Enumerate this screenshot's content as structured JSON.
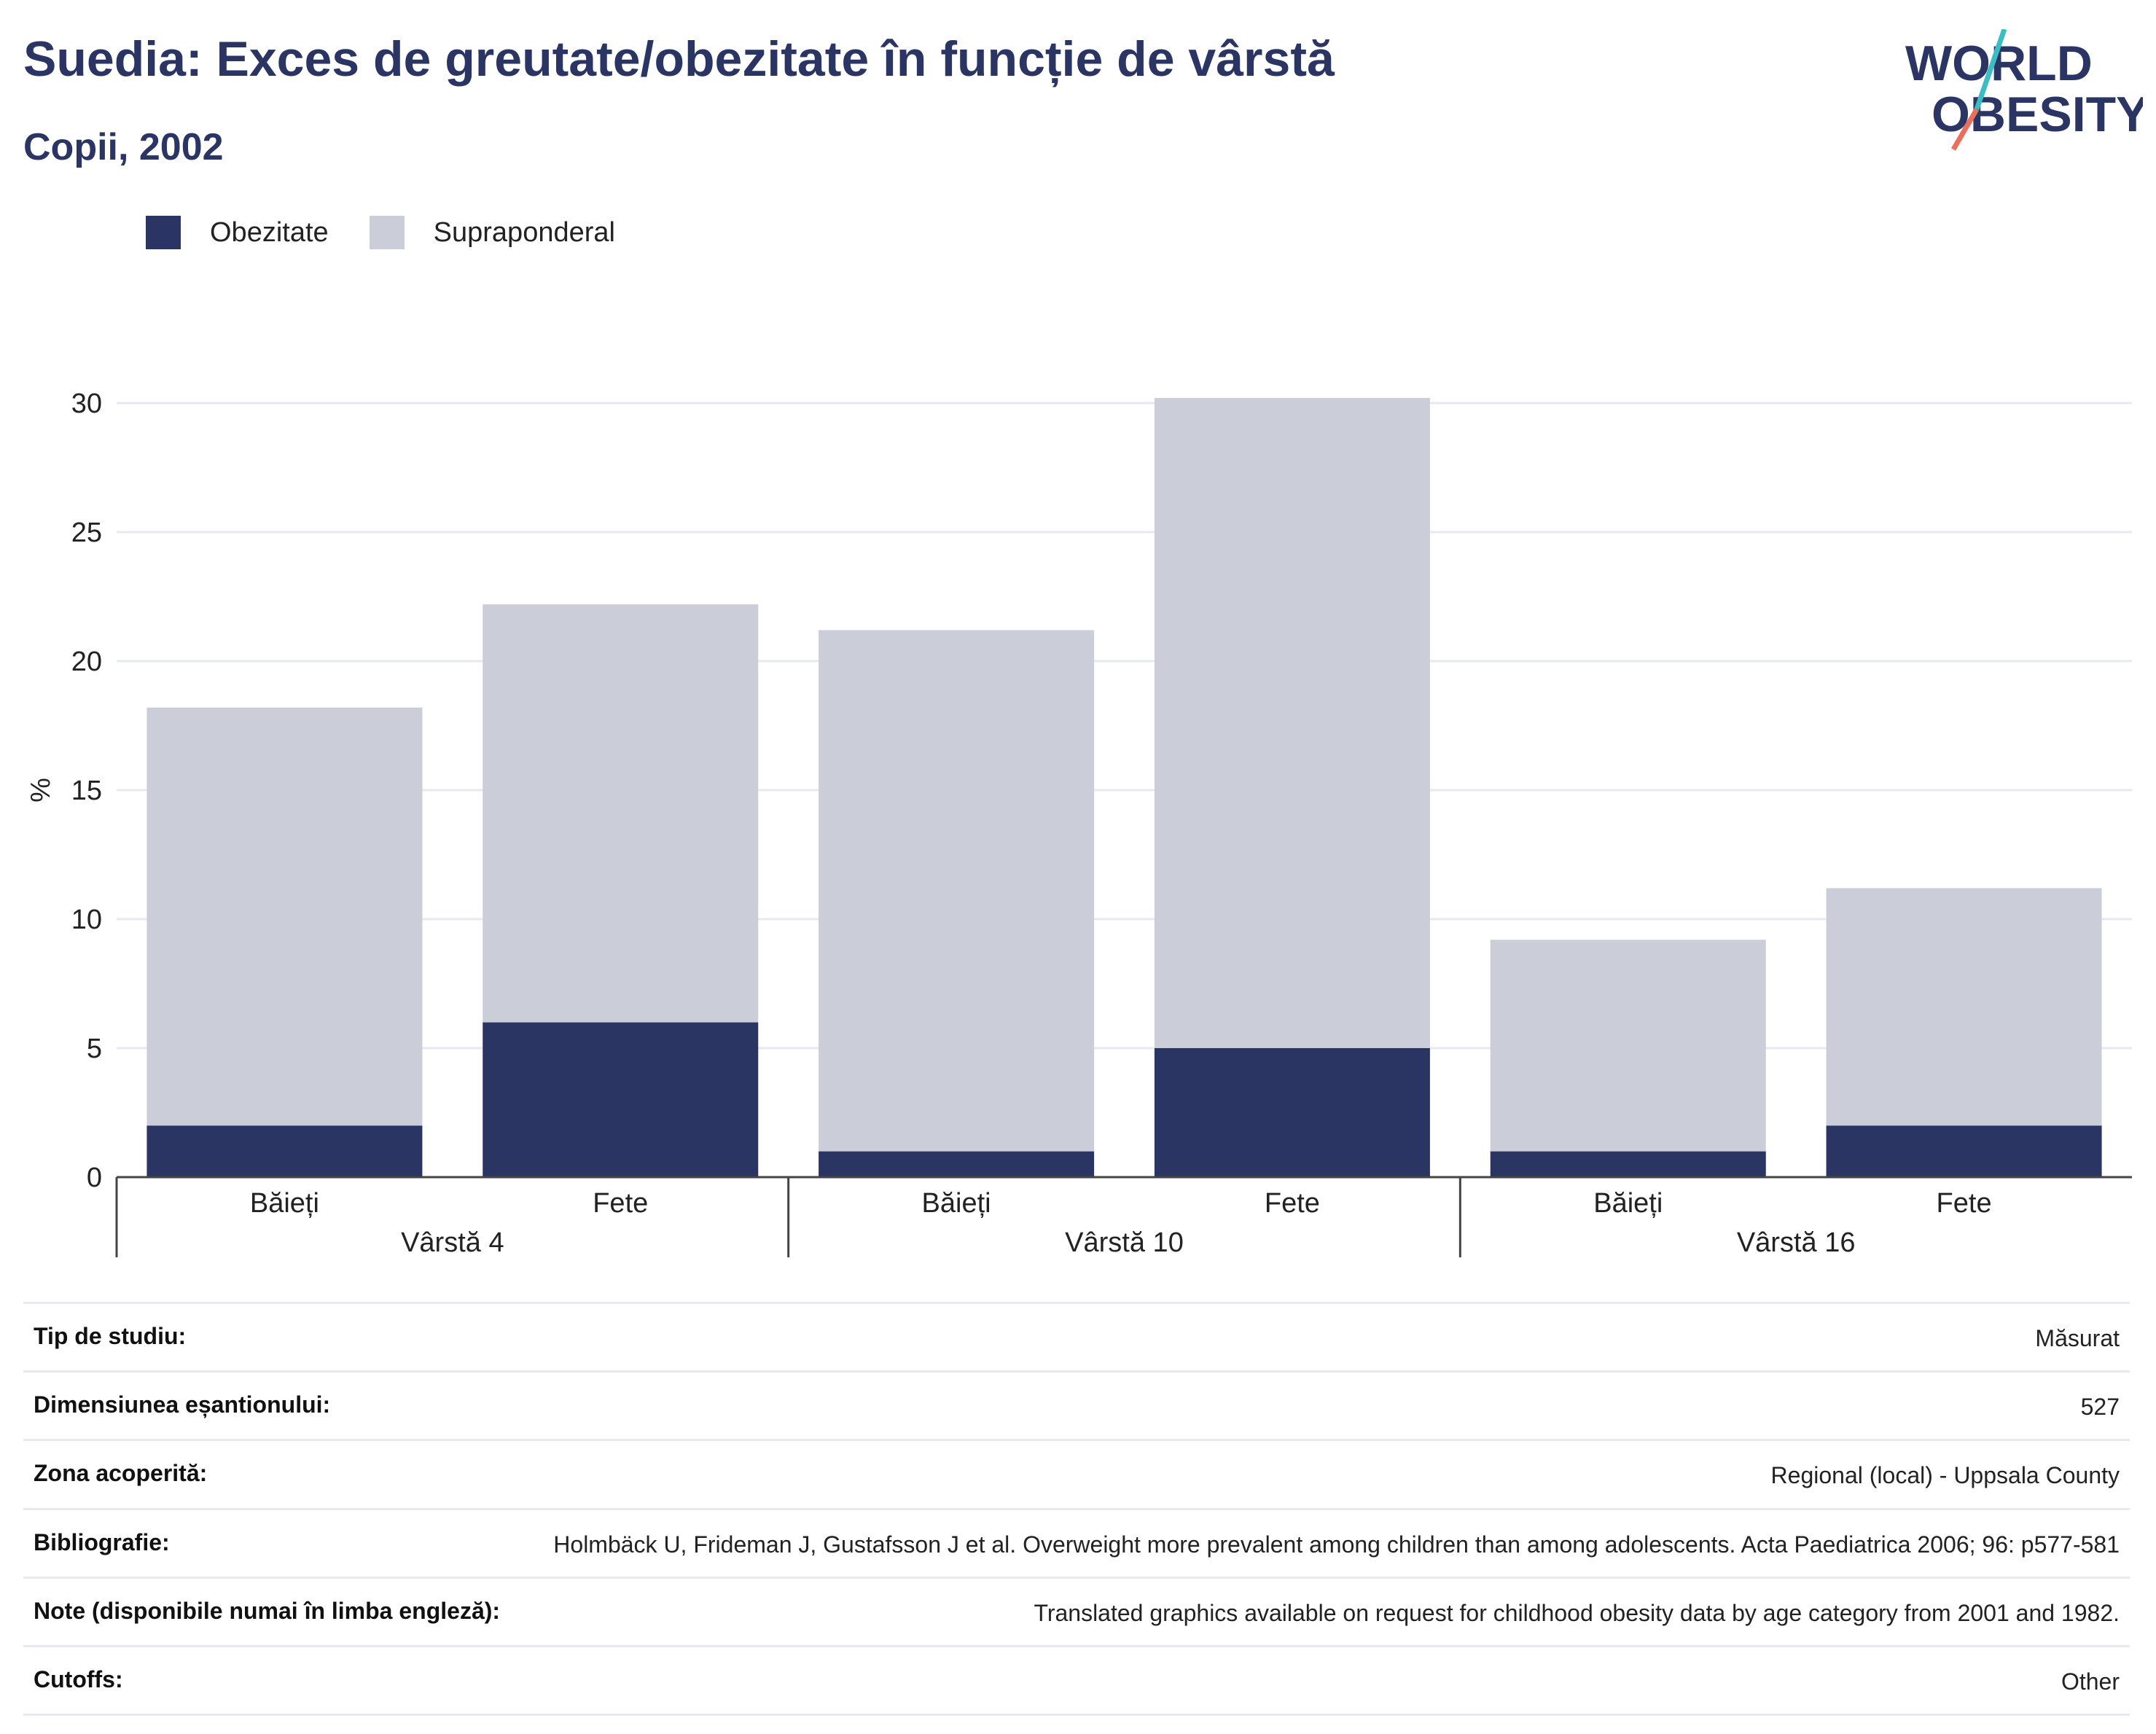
{
  "header": {
    "title": "Suedia: Exces de greutate/obezitate în funcție de vârstă",
    "subtitle": "Copii, 2002"
  },
  "logo": {
    "line1": "WORLD",
    "line2": "OBESITY"
  },
  "legend": [
    {
      "label": "Obezitate",
      "color": "#2b3563"
    },
    {
      "label": "Supraponderal",
      "color": "#cbcdd9"
    }
  ],
  "chart_data": {
    "type": "bar",
    "stacked": true,
    "ylabel": "%",
    "ylim": [
      0,
      30
    ],
    "yticks": [
      0,
      5,
      10,
      15,
      20,
      25,
      30
    ],
    "groups": [
      "Vârstă 4",
      "Vârstă 10",
      "Vârstă 16"
    ],
    "categories": [
      "Băieți",
      "Fete",
      "Băieți",
      "Fete",
      "Băieți",
      "Fete"
    ],
    "category_group": [
      0,
      0,
      1,
      1,
      2,
      2
    ],
    "series": [
      {
        "name": "Obezitate",
        "color": "#2b3563",
        "values": [
          2,
          6,
          1,
          5,
          1,
          2
        ]
      },
      {
        "name": "Supraponderal",
        "color": "#cbcdd9",
        "values": [
          16.2,
          16.2,
          20.2,
          25.2,
          8.2,
          9.2
        ]
      }
    ],
    "grid": true,
    "legend_position": "top-left"
  },
  "meta": [
    {
      "label": "Tip de studiu:",
      "value": "Măsurat"
    },
    {
      "label": "Dimensiunea eșantionului:",
      "value": "527"
    },
    {
      "label": "Zona acoperită:",
      "value": "Regional (local) - Uppsala County"
    },
    {
      "label": "Bibliografie:",
      "value": "Holmbäck U, Frideman J, Gustafsson J et al. Overweight more prevalent among children than among adolescents. Acta Paediatrica 2006; 96: p577-581"
    },
    {
      "label": "Note (disponibile numai în limba engleză):",
      "value": "Translated graphics available on request for childhood obesity data by age category from 2001 and 1982."
    },
    {
      "label": "Cutoffs:",
      "value": "Other"
    }
  ]
}
